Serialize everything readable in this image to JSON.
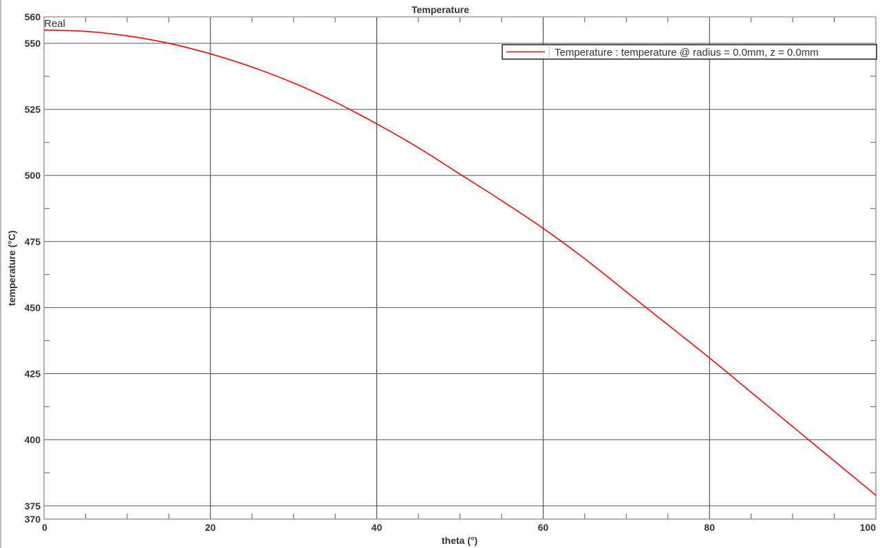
{
  "chart_data": {
    "type": "line",
    "title": "Temperature",
    "xlabel": "theta (°)",
    "ylabel": "temperature (°C)",
    "corner_label": "Real",
    "xlim": [
      0,
      100
    ],
    "ylim": [
      370,
      560
    ],
    "x_ticks": [
      0,
      20,
      40,
      60,
      80,
      100
    ],
    "y_ticks": [
      370,
      375,
      400,
      425,
      450,
      475,
      500,
      525,
      550,
      560
    ],
    "grid": true,
    "legend_position": "top-right",
    "series": [
      {
        "name": "Temperature : temperature @ radius = 0.0mm, z = 0.0mm",
        "color": "#ff0000",
        "x": [
          0,
          5,
          10,
          15,
          20,
          25,
          30,
          35,
          40,
          45,
          50,
          55,
          60,
          65,
          70,
          75,
          80,
          85,
          90,
          95,
          100
        ],
        "y": [
          555,
          554.5,
          552.8,
          550,
          546,
          541,
          535,
          527.8,
          519.5,
          510.5,
          500.5,
          490.5,
          480,
          468.5,
          456,
          443.5,
          431,
          418,
          405,
          392,
          379
        ]
      }
    ]
  }
}
